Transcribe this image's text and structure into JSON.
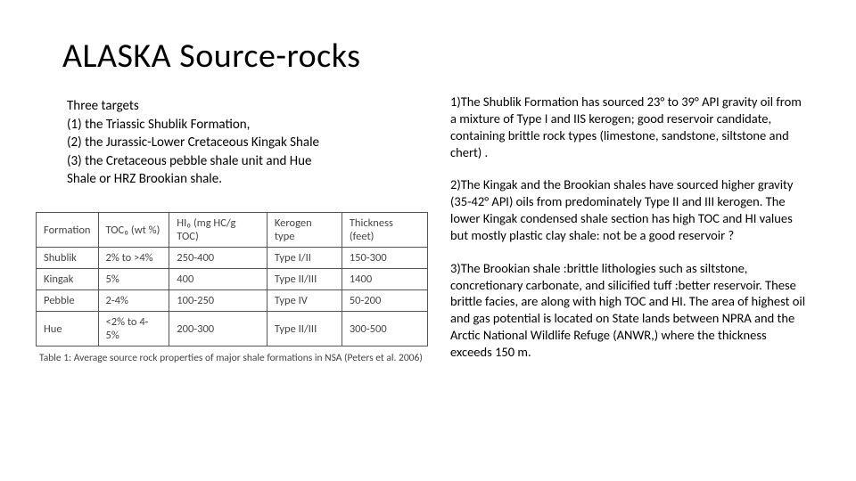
{
  "title": "ALASKA Source-rocks",
  "targets": {
    "heading": "Three targets",
    "items": [
      "(1)  the Triassic Shublik Formation,",
      "(2)  the Jurassic-Lower Cretaceous Kingak Shale",
      "(3)   the Cretaceous pebble shale unit and Hue",
      "       Shale or HRZ Brookian shale."
    ]
  },
  "table": {
    "columns": [
      "Formation",
      "TOC₀ (wt %)",
      "HI₀ (mg HC/g TOC)",
      "Kerogen type",
      "Thickness (feet)"
    ],
    "rows": [
      [
        "Shublik",
        "2% to >4%",
        "250-400",
        "Type I/II",
        "150-300"
      ],
      [
        "Kingak",
        "5%",
        "400",
        "Type II/III",
        "1400"
      ],
      [
        "Pebble",
        "2-4%",
        "100-250",
        "Type IV",
        "50-200"
      ],
      [
        "Hue",
        "<2% to 4-5%",
        "200-300",
        "Type II/III",
        "300-500"
      ]
    ],
    "caption": "Table 1: Average source rock properties of major shale formations in NSA (Peters et al. 2006)",
    "col_widths": [
      "18%",
      "22%",
      "26%",
      "18%",
      "20%"
    ],
    "border_color": "#555555",
    "font_size": 12.5
  },
  "paragraphs": [
    "1)The Shublik Formation has sourced 23° to 39° API gravity  oil from a mixture of Type I and IIS kerogen; good reservoir candidate, containing brittle rock types (limestone, sandstone, siltstone and chert) .",
    "2)The Kingak and the Brookian shales have sourced higher gravity (35-42° API) oils from predominately Type II and III kerogen. The lower Kingak condensed shale section has high TOC and HI values but mostly plastic clay shale: not be a good reservoir ?",
    "3)The Brookian shale :brittle lithologies such as siltstone, concretionary carbonate, and silicified tuff :better reservoir. These brittle facies, are along with high TOC and HI. The area of highest oil and gas potential is located on State lands between NPRA and the Arctic National Wildlife Refuge (ANWR,) where the thickness exceeds 150 m."
  ],
  "style": {
    "background": "#ffffff",
    "title_fontsize": 38,
    "body_fontsize": 15,
    "para_fontsize": 14.5,
    "text_color": "#000000"
  }
}
